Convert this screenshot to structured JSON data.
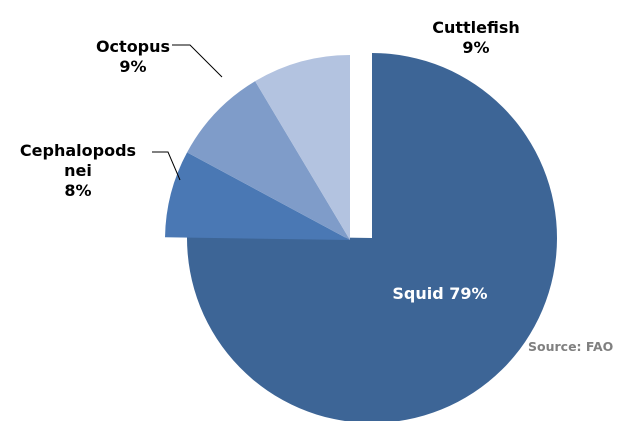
{
  "chart_data": {
    "type": "pie",
    "slices": [
      {
        "label": "Squid",
        "label_lines": [
          "Squid 79%"
        ],
        "value": 79,
        "color": "#3d6596",
        "exploded": false
      },
      {
        "label": "Cephalopods nei",
        "label_lines": [
          "Cephalopods",
          "nei",
          "8%"
        ],
        "value": 8,
        "color": "#4a78b4",
        "exploded": true
      },
      {
        "label": "Octopus",
        "label_lines": [
          "Octopus",
          "9%"
        ],
        "value": 9,
        "color": "#7f9cc9",
        "exploded": true
      },
      {
        "label": "Cuttlefish",
        "label_lines": [
          "Cuttlefish",
          "9%"
        ],
        "value": 9,
        "color": "#b3c3e0",
        "exploded": true
      }
    ],
    "source": "Source: FAO"
  }
}
